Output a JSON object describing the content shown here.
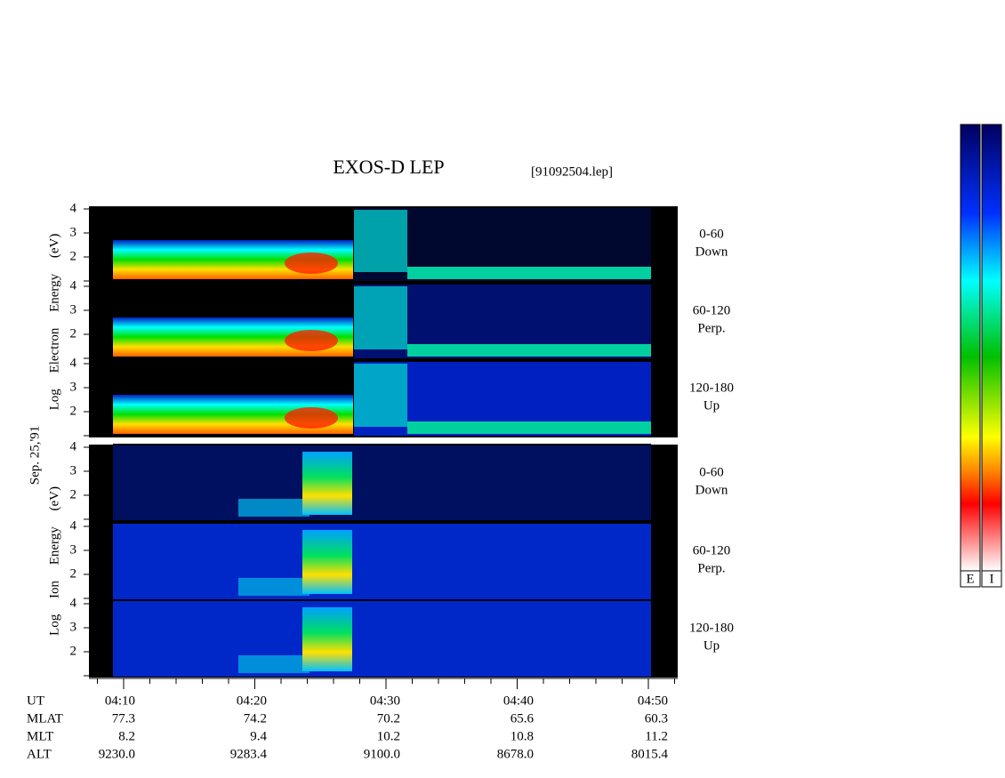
{
  "title": "EXOS-D LEP",
  "file": "[91092504.lep]",
  "date": "Sep. 25,'91",
  "groups": [
    {
      "ylabel": "Log Electron Energy (eV)",
      "panels": [
        {
          "angle": "0-60",
          "direction": "Down",
          "yticks": [
            2,
            3,
            4
          ]
        },
        {
          "angle": "60-120",
          "direction": "Perp.",
          "yticks": [
            2,
            3,
            4
          ]
        },
        {
          "angle": "120-180",
          "direction": "Up",
          "yticks": [
            2,
            3,
            4
          ]
        }
      ]
    },
    {
      "ylabel": "Log Ion Energy (eV)",
      "panels": [
        {
          "angle": "0-60",
          "direction": "Down",
          "yticks": [
            2,
            3,
            4
          ]
        },
        {
          "angle": "60-120",
          "direction": "Perp.",
          "yticks": [
            2,
            3,
            4
          ]
        },
        {
          "angle": "120-180",
          "direction": "Up",
          "yticks": [
            2,
            3,
            4
          ]
        }
      ]
    }
  ],
  "timeaxis": {
    "rows": [
      {
        "label": "UT",
        "values": [
          "04:10",
          "04:20",
          "04:30",
          "04:40",
          "04:50"
        ]
      },
      {
        "label": "MLAT",
        "values": [
          "77.3",
          "74.2",
          "70.2",
          "65.6",
          "60.3"
        ]
      },
      {
        "label": "MLT",
        "values": [
          "8.2",
          "9.4",
          "10.2",
          "10.8",
          "11.2"
        ]
      },
      {
        "label": "ALT",
        "values": [
          "9230.0",
          "9283.4",
          "9100.0",
          "8678.0",
          "8015.4"
        ]
      }
    ]
  },
  "colorbars": [
    "E",
    "I"
  ]
}
